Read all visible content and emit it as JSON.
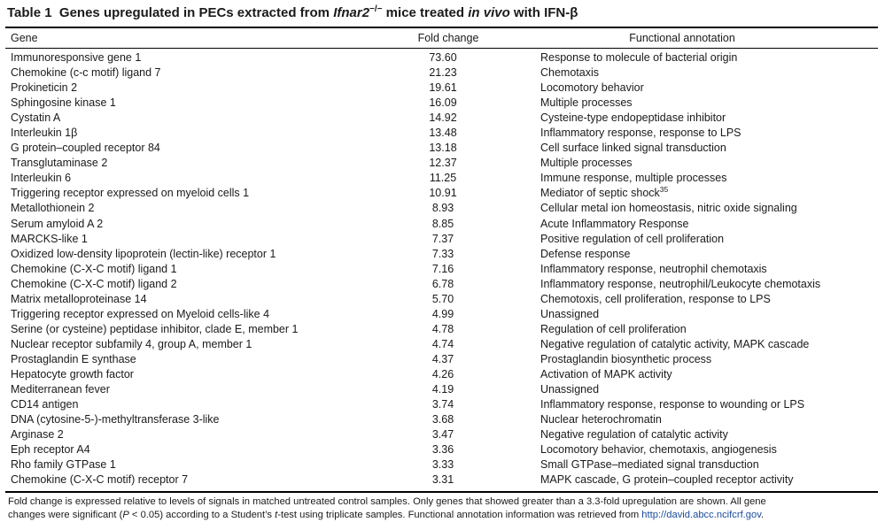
{
  "title": {
    "label": "Table 1",
    "part1": "Genes upregulated in PECs extracted from ",
    "gene_symbol": "Ifnar2",
    "superscript": "−/−",
    "part2": " mice treated ",
    "in_vivo": "in vivo",
    "part3": " with IFN-β"
  },
  "columns": {
    "gene": "Gene",
    "fold_change": "Fold change",
    "annotation": "Functional annotation"
  },
  "rows": [
    {
      "gene": "Immunoresponsive gene 1",
      "fold": "73.60",
      "annotation": "Response to molecule of bacterial origin"
    },
    {
      "gene": "Chemokine (c-c motif) ligand 7",
      "fold": "21.23",
      "annotation": "Chemotaxis"
    },
    {
      "gene": "Prokineticin 2",
      "fold": "19.61",
      "annotation": "Locomotory behavior"
    },
    {
      "gene": "Sphingosine kinase 1",
      "fold": "16.09",
      "annotation": "Multiple processes"
    },
    {
      "gene": "Cystatin A",
      "fold": "14.92",
      "annotation": "Cysteine-type endopeptidase inhibitor"
    },
    {
      "gene": "Interleukin 1β",
      "fold": "13.48",
      "annotation": "Inflammatory response, response to LPS"
    },
    {
      "gene": "G protein–coupled receptor 84",
      "fold": "13.18",
      "annotation": "Cell surface linked signal transduction"
    },
    {
      "gene": "Transglutaminase 2",
      "fold": "12.37",
      "annotation": "Multiple processes"
    },
    {
      "gene": "Interleukin 6",
      "fold": "11.25",
      "annotation": "Immune response, multiple processes"
    },
    {
      "gene": "Triggering receptor expressed on myeloid cells 1",
      "fold": "10.91",
      "annotation": "Mediator of septic shock",
      "annotation_sup": "35"
    },
    {
      "gene": "Metallothionein 2",
      "fold": "8.93",
      "annotation": "Cellular metal ion homeostasis, nitric oxide signaling"
    },
    {
      "gene": "Serum amyloid A 2",
      "fold": "8.85",
      "annotation": "Acute Inflammatory Response"
    },
    {
      "gene": "MARCKS-like 1",
      "fold": "7.37",
      "annotation": "Positive regulation of cell proliferation"
    },
    {
      "gene": "Oxidized low-density lipoprotein (lectin-like) receptor 1",
      "fold": "7.33",
      "annotation": "Defense response"
    },
    {
      "gene": "Chemokine (C-X-C motif) ligand 1",
      "fold": "7.16",
      "annotation": "Inflammatory response, neutrophil chemotaxis"
    },
    {
      "gene": "Chemokine (C-X-C motif) ligand 2",
      "fold": "6.78",
      "annotation": "Inflammatory response, neutrophil/Leukocyte chemotaxis"
    },
    {
      "gene": "Matrix metalloproteinase 14",
      "fold": "5.70",
      "annotation": "Chemotoxis, cell proliferation, response to LPS"
    },
    {
      "gene": "Triggering receptor expressed on Myeloid cells-like 4",
      "fold": "4.99",
      "annotation": "Unassigned"
    },
    {
      "gene": "Serine (or cysteine) peptidase inhibitor, clade E, member 1",
      "fold": "4.78",
      "annotation": "Regulation of cell proliferation"
    },
    {
      "gene": "Nuclear receptor subfamily 4, group A, member 1",
      "fold": "4.74",
      "annotation": "Negative regulation of catalytic activity, MAPK cascade"
    },
    {
      "gene": "Prostaglandin E synthase",
      "fold": "4.37",
      "annotation": "Prostaglandin biosynthetic process"
    },
    {
      "gene": "Hepatocyte growth factor",
      "fold": "4.26",
      "annotation": "Activation of MAPK activity"
    },
    {
      "gene": "Mediterranean fever",
      "fold": "4.19",
      "annotation": "Unassigned"
    },
    {
      "gene": "CD14 antigen",
      "fold": "3.74",
      "annotation": "Inflammatory response, response to wounding or LPS"
    },
    {
      "gene": "DNA (cytosine-5-)-methyltransferase 3-like",
      "fold": "3.68",
      "annotation": "Nuclear heterochromatin"
    },
    {
      "gene": "Arginase 2",
      "fold": "3.47",
      "annotation": "Negative regulation of catalytic activity"
    },
    {
      "gene": "Eph receptor A4",
      "fold": "3.36",
      "annotation": "Locomotory behavior, chemotaxis, angiogenesis"
    },
    {
      "gene": "Rho family GTPase 1",
      "fold": "3.33",
      "annotation": "Small GTPase–mediated signal transduction"
    },
    {
      "gene": "Chemokine (C-X-C motif) receptor 7",
      "fold": "3.31",
      "annotation": "MAPK cascade, G protein–coupled receptor activity"
    }
  ],
  "footnote": {
    "line1": "Fold change is expressed relative to levels of signals in matched untreated control samples. Only genes that showed greater than a 3.3-fold upregulation are shown. All gene",
    "line2a": "changes were significant (",
    "p_symbol": "P",
    "line2b": " < 0.05) according to a Student’s ",
    "t_symbol": "t",
    "line2c": "-test using triplicate samples. Functional annotation information was retrieved from ",
    "link": "http://david.abcc.ncifcrf.gov",
    "line2d": "."
  }
}
